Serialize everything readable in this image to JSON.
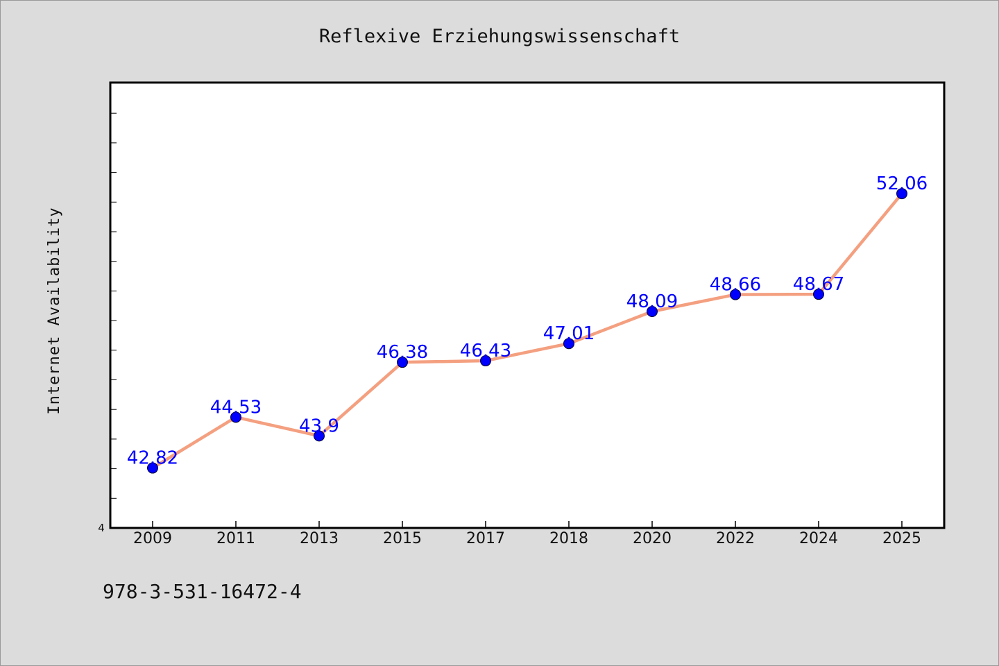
{
  "chart_data": {
    "type": "line",
    "title": "Reflexive Erziehungswissenschaft",
    "xlabel": "",
    "ylabel": "Internet Availability",
    "categories": [
      "2009",
      "2011",
      "2013",
      "2015",
      "2017",
      "2018",
      "2020",
      "2022",
      "2024",
      "2025"
    ],
    "series": [
      {
        "values": [
          42.82,
          44.53,
          43.9,
          46.38,
          46.43,
          47.01,
          48.09,
          48.66,
          48.67,
          52.06
        ],
        "labels": [
          "42.82",
          "44.53",
          "43.9",
          "46.38",
          "46.43",
          "47.01",
          "48.09",
          "48.66",
          "48.67",
          "52.06"
        ]
      }
    ],
    "y_tick_label": "4",
    "ylim": [
      40.8,
      55.8
    ],
    "grid": false,
    "line_color": "#f4a080",
    "marker_color": "#0000ff",
    "label_color": "#0000ff"
  },
  "footer_text": "978-3-531-16472-4"
}
